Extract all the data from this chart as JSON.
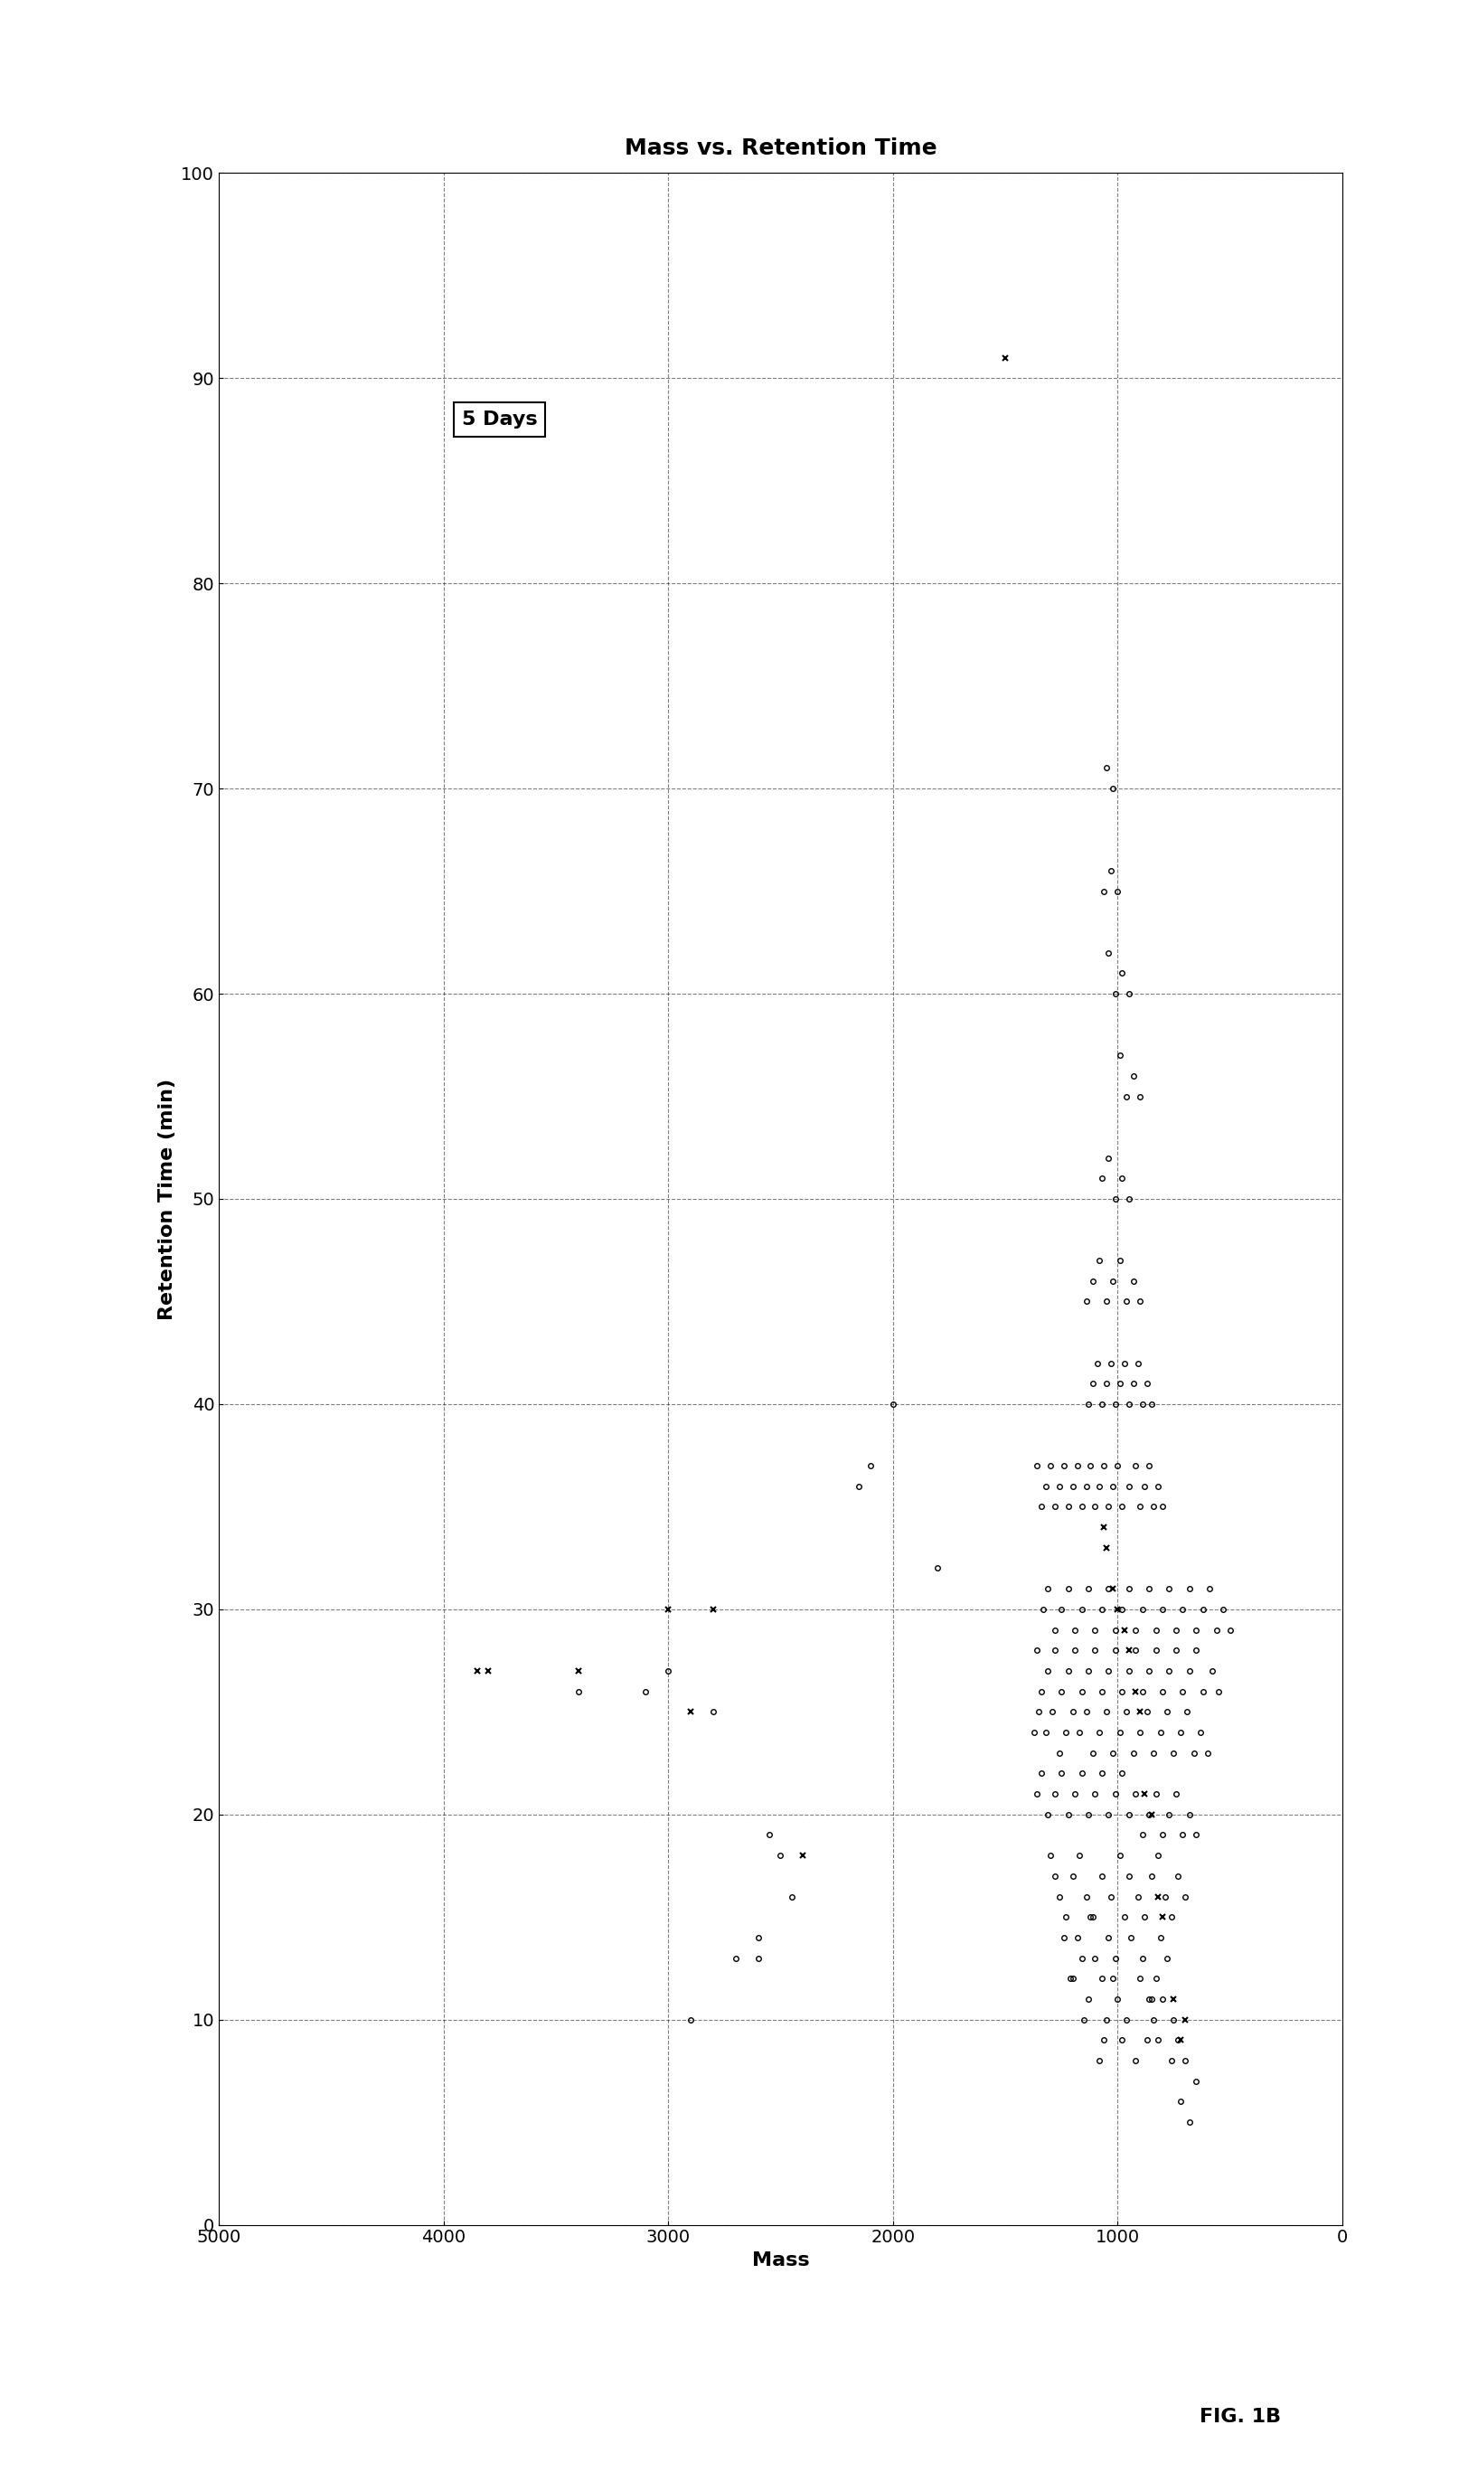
{
  "title": "Mass vs. Retention Time",
  "xlabel": "Mass",
  "ylabel": "Retention Time (min)",
  "fig_label": "FIG. 1B",
  "legend_label": "5 Days",
  "xlim": [
    0,
    5000
  ],
  "ylim": [
    0,
    100
  ],
  "xticks": [
    0,
    1000,
    2000,
    3000,
    4000,
    5000
  ],
  "yticks": [
    0,
    10,
    20,
    30,
    40,
    50,
    60,
    70,
    80,
    90,
    100
  ],
  "circle_points": [
    [
      700,
      8
    ],
    [
      650,
      7
    ],
    [
      720,
      6
    ],
    [
      680,
      5
    ],
    [
      730,
      9
    ],
    [
      750,
      10
    ],
    [
      800,
      11
    ],
    [
      820,
      9
    ],
    [
      760,
      8
    ],
    [
      840,
      10
    ],
    [
      900,
      12
    ],
    [
      850,
      11
    ],
    [
      870,
      9
    ],
    [
      920,
      8
    ],
    [
      960,
      10
    ],
    [
      1000,
      11
    ],
    [
      980,
      9
    ],
    [
      1020,
      12
    ],
    [
      1050,
      10
    ],
    [
      1080,
      8
    ],
    [
      1100,
      13
    ],
    [
      1130,
      11
    ],
    [
      1060,
      9
    ],
    [
      1150,
      10
    ],
    [
      1200,
      12
    ],
    [
      780,
      13
    ],
    [
      810,
      14
    ],
    [
      830,
      12
    ],
    [
      860,
      11
    ],
    [
      890,
      13
    ],
    [
      940,
      14
    ],
    [
      970,
      15
    ],
    [
      1010,
      13
    ],
    [
      1040,
      14
    ],
    [
      1070,
      12
    ],
    [
      1120,
      15
    ],
    [
      1160,
      13
    ],
    [
      1180,
      14
    ],
    [
      1210,
      12
    ],
    [
      1240,
      14
    ],
    [
      700,
      16
    ],
    [
      730,
      17
    ],
    [
      760,
      15
    ],
    [
      790,
      16
    ],
    [
      820,
      18
    ],
    [
      850,
      17
    ],
    [
      880,
      15
    ],
    [
      910,
      16
    ],
    [
      950,
      17
    ],
    [
      990,
      18
    ],
    [
      1030,
      16
    ],
    [
      1070,
      17
    ],
    [
      1110,
      15
    ],
    [
      1140,
      16
    ],
    [
      1170,
      18
    ],
    [
      1200,
      17
    ],
    [
      1230,
      15
    ],
    [
      1260,
      16
    ],
    [
      1280,
      17
    ],
    [
      1300,
      18
    ],
    [
      650,
      19
    ],
    [
      680,
      20
    ],
    [
      710,
      19
    ],
    [
      740,
      21
    ],
    [
      770,
      20
    ],
    [
      800,
      19
    ],
    [
      830,
      21
    ],
    [
      860,
      20
    ],
    [
      890,
      19
    ],
    [
      920,
      21
    ],
    [
      950,
      20
    ],
    [
      980,
      22
    ],
    [
      1010,
      21
    ],
    [
      1040,
      20
    ],
    [
      1070,
      22
    ],
    [
      1100,
      21
    ],
    [
      1130,
      20
    ],
    [
      1160,
      22
    ],
    [
      1190,
      21
    ],
    [
      1220,
      20
    ],
    [
      1250,
      22
    ],
    [
      1280,
      21
    ],
    [
      1310,
      20
    ],
    [
      1340,
      22
    ],
    [
      1360,
      21
    ],
    [
      600,
      23
    ],
    [
      630,
      24
    ],
    [
      660,
      23
    ],
    [
      690,
      25
    ],
    [
      720,
      24
    ],
    [
      750,
      23
    ],
    [
      780,
      25
    ],
    [
      810,
      24
    ],
    [
      840,
      23
    ],
    [
      870,
      25
    ],
    [
      900,
      24
    ],
    [
      930,
      23
    ],
    [
      960,
      25
    ],
    [
      990,
      24
    ],
    [
      1020,
      23
    ],
    [
      1050,
      25
    ],
    [
      1080,
      24
    ],
    [
      1110,
      23
    ],
    [
      1140,
      25
    ],
    [
      1170,
      24
    ],
    [
      1200,
      25
    ],
    [
      1230,
      24
    ],
    [
      1260,
      23
    ],
    [
      1290,
      25
    ],
    [
      1320,
      24
    ],
    [
      1350,
      25
    ],
    [
      1370,
      24
    ],
    [
      550,
      26
    ],
    [
      580,
      27
    ],
    [
      620,
      26
    ],
    [
      650,
      28
    ],
    [
      680,
      27
    ],
    [
      710,
      26
    ],
    [
      740,
      28
    ],
    [
      770,
      27
    ],
    [
      800,
      26
    ],
    [
      830,
      28
    ],
    [
      860,
      27
    ],
    [
      890,
      26
    ],
    [
      920,
      28
    ],
    [
      950,
      27
    ],
    [
      980,
      26
    ],
    [
      1010,
      28
    ],
    [
      1040,
      27
    ],
    [
      1070,
      26
    ],
    [
      1100,
      28
    ],
    [
      1130,
      27
    ],
    [
      1160,
      26
    ],
    [
      1190,
      28
    ],
    [
      1220,
      27
    ],
    [
      1250,
      26
    ],
    [
      1280,
      28
    ],
    [
      1310,
      27
    ],
    [
      1340,
      26
    ],
    [
      1360,
      28
    ],
    [
      500,
      29
    ],
    [
      530,
      30
    ],
    [
      560,
      29
    ],
    [
      590,
      31
    ],
    [
      620,
      30
    ],
    [
      650,
      29
    ],
    [
      680,
      31
    ],
    [
      710,
      30
    ],
    [
      740,
      29
    ],
    [
      770,
      31
    ],
    [
      800,
      30
    ],
    [
      830,
      29
    ],
    [
      860,
      31
    ],
    [
      890,
      30
    ],
    [
      920,
      29
    ],
    [
      950,
      31
    ],
    [
      980,
      30
    ],
    [
      1010,
      29
    ],
    [
      1040,
      31
    ],
    [
      1070,
      30
    ],
    [
      1100,
      29
    ],
    [
      1130,
      31
    ],
    [
      1160,
      30
    ],
    [
      1190,
      29
    ],
    [
      1220,
      31
    ],
    [
      1250,
      30
    ],
    [
      1280,
      29
    ],
    [
      1310,
      31
    ],
    [
      1330,
      30
    ],
    [
      800,
      35
    ],
    [
      820,
      36
    ],
    [
      840,
      35
    ],
    [
      860,
      37
    ],
    [
      880,
      36
    ],
    [
      900,
      35
    ],
    [
      920,
      37
    ],
    [
      950,
      36
    ],
    [
      980,
      35
    ],
    [
      1000,
      37
    ],
    [
      1020,
      36
    ],
    [
      1040,
      35
    ],
    [
      1060,
      37
    ],
    [
      1080,
      36
    ],
    [
      1100,
      35
    ],
    [
      1120,
      37
    ],
    [
      1140,
      36
    ],
    [
      1160,
      35
    ],
    [
      1180,
      37
    ],
    [
      1200,
      36
    ],
    [
      1220,
      35
    ],
    [
      1240,
      37
    ],
    [
      1260,
      36
    ],
    [
      1280,
      35
    ],
    [
      1300,
      37
    ],
    [
      1320,
      36
    ],
    [
      1340,
      35
    ],
    [
      1360,
      37
    ],
    [
      850,
      40
    ],
    [
      870,
      41
    ],
    [
      890,
      40
    ],
    [
      910,
      42
    ],
    [
      930,
      41
    ],
    [
      950,
      40
    ],
    [
      970,
      42
    ],
    [
      990,
      41
    ],
    [
      1010,
      40
    ],
    [
      1030,
      42
    ],
    [
      1050,
      41
    ],
    [
      1070,
      40
    ],
    [
      1090,
      42
    ],
    [
      1110,
      41
    ],
    [
      1130,
      40
    ],
    [
      900,
      45
    ],
    [
      930,
      46
    ],
    [
      960,
      45
    ],
    [
      990,
      47
    ],
    [
      1020,
      46
    ],
    [
      1050,
      45
    ],
    [
      1080,
      47
    ],
    [
      1110,
      46
    ],
    [
      1140,
      45
    ],
    [
      950,
      50
    ],
    [
      980,
      51
    ],
    [
      1010,
      50
    ],
    [
      1040,
      52
    ],
    [
      1070,
      51
    ],
    [
      900,
      55
    ],
    [
      930,
      56
    ],
    [
      960,
      55
    ],
    [
      990,
      57
    ],
    [
      950,
      60
    ],
    [
      980,
      61
    ],
    [
      1010,
      60
    ],
    [
      1040,
      62
    ],
    [
      1000,
      65
    ],
    [
      1030,
      66
    ],
    [
      1060,
      65
    ],
    [
      1020,
      70
    ],
    [
      1050,
      71
    ],
    [
      2100,
      37
    ],
    [
      2150,
      36
    ],
    [
      2000,
      40
    ],
    [
      1800,
      32
    ],
    [
      2900,
      10
    ],
    [
      2800,
      25
    ],
    [
      3000,
      27
    ],
    [
      3100,
      26
    ],
    [
      3400,
      26
    ],
    [
      2600,
      13
    ],
    [
      2600,
      14
    ],
    [
      2700,
      13
    ],
    [
      2500,
      18
    ],
    [
      2550,
      19
    ],
    [
      2450,
      16
    ]
  ],
  "cross_points": [
    [
      700,
      10
    ],
    [
      750,
      11
    ],
    [
      720,
      9
    ],
    [
      800,
      15
    ],
    [
      820,
      16
    ],
    [
      850,
      20
    ],
    [
      880,
      21
    ],
    [
      900,
      25
    ],
    [
      920,
      26
    ],
    [
      950,
      28
    ],
    [
      970,
      29
    ],
    [
      1000,
      30
    ],
    [
      1020,
      31
    ],
    [
      1050,
      33
    ],
    [
      1060,
      34
    ],
    [
      3800,
      27
    ],
    [
      3850,
      27
    ],
    [
      3400,
      27
    ],
    [
      2800,
      30
    ],
    [
      3000,
      30
    ],
    [
      2400,
      18
    ],
    [
      2900,
      25
    ],
    [
      1500,
      91
    ]
  ]
}
